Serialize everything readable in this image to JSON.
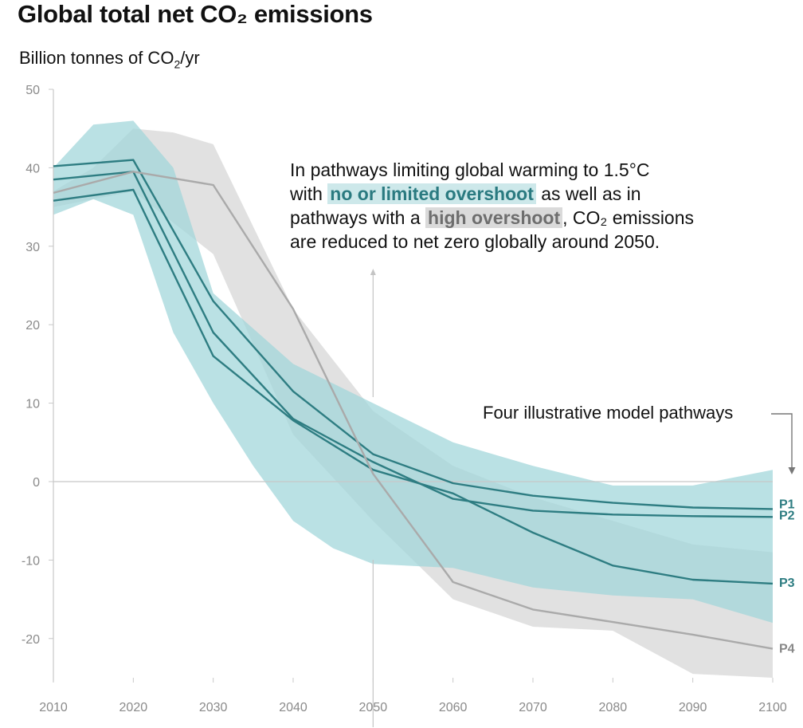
{
  "title": "Global total net CO₂ emissions",
  "unit_label": {
    "prefix": "Billion tonnes of CO",
    "sub": "2",
    "suffix": "/yr"
  },
  "annotation": {
    "line1": "In pathways limiting global warming to 1.5°C",
    "pre_teal": "with ",
    "teal": "no or limited overshoot",
    "post_teal": " as well as in",
    "pre_grey": "pathways with a ",
    "grey": "high overshoot",
    "post_grey": ", CO₂ emissions",
    "line4": "are reduced to net zero globally around 2050."
  },
  "pathways_label": "Four illustrative model pathways",
  "colors": {
    "teal": "#2e7d82",
    "teal_fill": "#9fd5d9",
    "grey_fill": "#dcdcdc",
    "grey_line": "#aaaaaa",
    "axis": "#c8c8c8"
  },
  "chart_data": {
    "type": "line",
    "xlim": [
      2010,
      2100
    ],
    "ylim": [
      -25,
      50
    ],
    "x_ticks": [
      2010,
      2020,
      2030,
      2040,
      2050,
      2060,
      2070,
      2080,
      2090,
      2100
    ],
    "y_ticks": [
      50,
      40,
      30,
      20,
      10,
      0,
      -10,
      -20
    ],
    "y_tick_labels": [
      "50",
      "40",
      "30",
      "20",
      "10",
      "0",
      "-10",
      "-20"
    ],
    "bands": [
      {
        "kind": "high-overshoot",
        "upper": [
          [
            2010,
            37
          ],
          [
            2015,
            40
          ],
          [
            2020,
            45
          ],
          [
            2025,
            44.5
          ],
          [
            2030,
            43
          ],
          [
            2040,
            22
          ],
          [
            2050,
            9
          ],
          [
            2060,
            2
          ],
          [
            2070,
            -2
          ],
          [
            2080,
            -5
          ],
          [
            2090,
            -8
          ],
          [
            2100,
            -9
          ]
        ],
        "lower": [
          [
            2010,
            35
          ],
          [
            2015,
            36
          ],
          [
            2020,
            37
          ],
          [
            2030,
            29
          ],
          [
            2040,
            6
          ],
          [
            2050,
            -5
          ],
          [
            2060,
            -15
          ],
          [
            2070,
            -18.5
          ],
          [
            2080,
            -19
          ],
          [
            2090,
            -24.5
          ],
          [
            2100,
            -25
          ]
        ]
      },
      {
        "kind": "no-or-limited-overshoot",
        "upper": [
          [
            2010,
            40
          ],
          [
            2015,
            45.5
          ],
          [
            2020,
            46
          ],
          [
            2025,
            40
          ],
          [
            2030,
            24
          ],
          [
            2040,
            15
          ],
          [
            2050,
            10
          ],
          [
            2060,
            5
          ],
          [
            2070,
            2
          ],
          [
            2080,
            -0.5
          ],
          [
            2090,
            -0.5
          ],
          [
            2100,
            1.5
          ]
        ],
        "lower": [
          [
            2010,
            34
          ],
          [
            2015,
            36
          ],
          [
            2020,
            34
          ],
          [
            2025,
            19
          ],
          [
            2030,
            10
          ],
          [
            2035,
            2
          ],
          [
            2040,
            -5
          ],
          [
            2045,
            -8.5
          ],
          [
            2050,
            -10.5
          ],
          [
            2060,
            -11
          ],
          [
            2070,
            -13.5
          ],
          [
            2080,
            -14.5
          ],
          [
            2090,
            -15
          ],
          [
            2100,
            -18
          ]
        ]
      }
    ],
    "series": [
      {
        "name": "P1",
        "x": [
          2010,
          2020,
          2030,
          2040,
          2050,
          2060,
          2070,
          2080,
          2090,
          2100
        ],
        "y": [
          40.2,
          41,
          23,
          11.5,
          3.5,
          -0.2,
          -1.8,
          -2.7,
          -3.3,
          -3.5
        ]
      },
      {
        "name": "P2",
        "x": [
          2010,
          2020,
          2030,
          2040,
          2050,
          2060,
          2070,
          2080,
          2090,
          2100
        ],
        "y": [
          38.5,
          39.5,
          19,
          8,
          2.5,
          -2.2,
          -3.7,
          -4.2,
          -4.4,
          -4.5
        ]
      },
      {
        "name": "P3",
        "x": [
          2010,
          2020,
          2030,
          2040,
          2050,
          2060,
          2070,
          2080,
          2090,
          2100
        ],
        "y": [
          35.8,
          37.2,
          16,
          7.8,
          1.5,
          -1.5,
          -6.5,
          -10.7,
          -12.5,
          -13
        ]
      },
      {
        "name": "P4",
        "x": [
          2010,
          2020,
          2030,
          2040,
          2050,
          2060,
          2070,
          2080,
          2090,
          2100
        ],
        "y": [
          36.8,
          39.5,
          37.8,
          22,
          1,
          -12.8,
          -16.3,
          -17.9,
          -19.5,
          -21.3
        ]
      }
    ]
  }
}
